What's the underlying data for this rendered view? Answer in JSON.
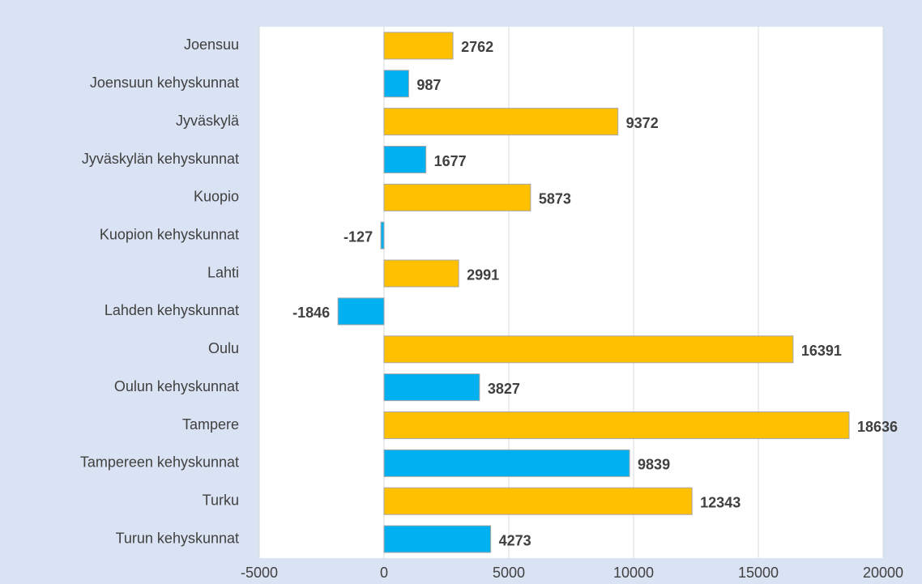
{
  "chart_data": {
    "type": "barh",
    "categories": [
      "Joensuu",
      "Joensuun kehyskunnat",
      "Jyväskylä",
      "Jyväskylän kehyskunnat",
      "Kuopio",
      "Kuopion kehyskunnat",
      "Lahti",
      "Lahden kehyskunnat",
      "Oulu",
      "Oulun kehyskunnat",
      "Tampere",
      "Tampereen kehyskunnat",
      "Turku",
      "Turun kehyskunnat"
    ],
    "values": [
      2762,
      987,
      9372,
      1677,
      5873,
      -127,
      2991,
      -1846,
      16391,
      3827,
      18636,
      9839,
      12343,
      4273
    ],
    "colors": [
      "#FFC000",
      "#00B0F0",
      "#FFC000",
      "#00B0F0",
      "#FFC000",
      "#00B0F0",
      "#FFC000",
      "#00B0F0",
      "#FFC000",
      "#00B0F0",
      "#FFC000",
      "#00B0F0",
      "#FFC000",
      "#00B0F0"
    ],
    "xlim": [
      -5000,
      20000
    ],
    "xticks": [
      -5000,
      0,
      5000,
      10000,
      15000,
      20000
    ],
    "grid": true
  }
}
